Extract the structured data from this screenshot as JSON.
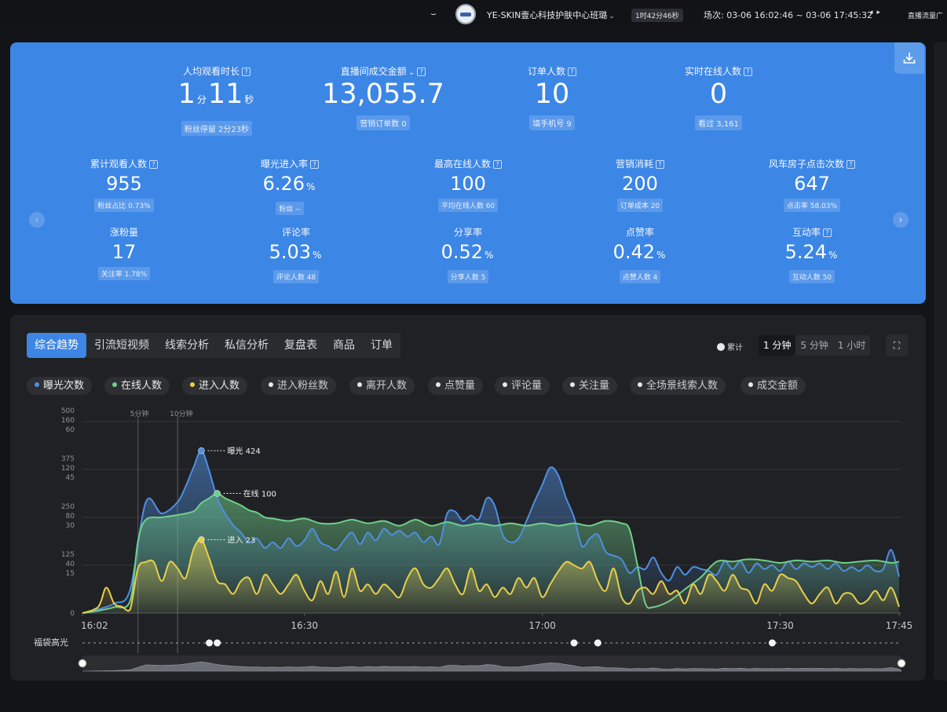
{
  "topbar": {
    "eye_icon": "eye-closed-icon",
    "shop_name": "YE-SKIN壹心科技护肤中心班璐",
    "duration": "1时42分46秒",
    "session": "场次: 03-06 16:02:46 ~ 03-06 17:45:32",
    "right_label": "直播流量广"
  },
  "top_metrics": [
    {
      "label": "人均观看时长",
      "value_main": "1",
      "unit1": "分",
      "value_second": "11",
      "unit2": "秒",
      "sub": "粉丝停留 2分23秒"
    },
    {
      "label": "直播间成交金额",
      "value": "13,055.7",
      "sub": "营销订单数 0",
      "has_caret": true
    },
    {
      "label": "订单人数",
      "value": "10",
      "sub": "填手机号 9"
    },
    {
      "label": "实时在线人数",
      "value": "0",
      "sub": "看过 3,161"
    }
  ],
  "grid_metrics": [
    {
      "label": "累计观看人数",
      "value": "955",
      "unit": "",
      "sub": "粉丝占比 0.73%",
      "help": true
    },
    {
      "label": "曝光进入率",
      "value": "6.26",
      "unit": "%",
      "sub": "粉丝 --",
      "help": true
    },
    {
      "label": "最高在线人数",
      "value": "100",
      "unit": "",
      "sub": "平均在线人数 60",
      "help": true
    },
    {
      "label": "营销消耗",
      "value": "200",
      "unit": "",
      "sub": "订单成本 20",
      "help": true
    },
    {
      "label": "风车房子点击次数",
      "value": "647",
      "unit": "",
      "sub": "点击率 58.03%",
      "help": true
    },
    {
      "label": "涨粉量",
      "value": "17",
      "unit": "",
      "sub": "关注率 1.78%",
      "help": false
    },
    {
      "label": "评论率",
      "value": "5.03",
      "unit": "%",
      "sub": "评论人数 48",
      "help": false
    },
    {
      "label": "分享率",
      "value": "0.52",
      "unit": "%",
      "sub": "分享人数 5",
      "help": false
    },
    {
      "label": "点赞率",
      "value": "0.42",
      "unit": "%",
      "sub": "点赞人数 4",
      "help": false
    },
    {
      "label": "互动率",
      "value": "5.24",
      "unit": "%",
      "sub": "互动人数 50",
      "help": true
    }
  ],
  "tabs": [
    "综合趋势",
    "引流短视频",
    "线索分析",
    "私信分析",
    "复盘表",
    "商品",
    "订单"
  ],
  "cumulative_label": "累计",
  "time_options": [
    "1 分钟",
    "5 分钟",
    "1 小时"
  ],
  "chips": [
    {
      "label": "曝光次数",
      "color": "#4f8fe0",
      "active": true
    },
    {
      "label": "在线人数",
      "color": "#6fcf8a",
      "active": true
    },
    {
      "label": "进入人数",
      "color": "#e7cf4a",
      "active": true
    },
    {
      "label": "进入粉丝数",
      "color": "#e9e9e9",
      "active": false
    },
    {
      "label": "离开人数",
      "color": "#e9e9e9",
      "active": false
    },
    {
      "label": "点赞量",
      "color": "#e9e9e9",
      "active": false
    },
    {
      "label": "评论量",
      "color": "#e9e9e9",
      "active": false
    },
    {
      "label": "关注量",
      "color": "#e9e9e9",
      "active": false
    },
    {
      "label": "全场景线索人数",
      "color": "#e9e9e9",
      "active": false
    },
    {
      "label": "成交金额",
      "color": "#e9e9e9",
      "active": false
    }
  ],
  "chart_data": {
    "type": "line",
    "x_labels": [
      "16:02",
      "16:30",
      "17:00",
      "17:30",
      "17:45"
    ],
    "x_ticks_min": [
      0,
      28,
      58,
      88,
      103
    ],
    "y_axis_labels": [
      [
        "500",
        "160",
        "60"
      ],
      [
        "375",
        "120",
        "45"
      ],
      [
        "250",
        "80",
        "30"
      ],
      [
        "125",
        "40",
        "15"
      ],
      [
        "0"
      ]
    ],
    "markers": [
      {
        "label": "5分钟",
        "x_min": 7
      },
      {
        "label": "10分钟",
        "x_min": 12
      }
    ],
    "annotations": [
      {
        "text": "曝光 424",
        "x_min": 15,
        "value": 424,
        "series": "曝光次数"
      },
      {
        "text": "在线 100",
        "x_min": 17,
        "value": 100,
        "series": "在线人数"
      },
      {
        "text": "进入 23",
        "x_min": 15,
        "value": 23,
        "series": "进入人数"
      }
    ],
    "series": [
      {
        "name": "曝光次数",
        "color": "#4f8fe0",
        "ymax": 500,
        "points": [
          [
            0,
            0
          ],
          [
            2,
            10
          ],
          [
            4,
            25
          ],
          [
            6,
            60
          ],
          [
            8,
            290
          ],
          [
            10,
            260
          ],
          [
            12,
            290
          ],
          [
            13,
            330
          ],
          [
            14,
            380
          ],
          [
            15,
            424
          ],
          [
            16,
            370
          ],
          [
            17,
            300
          ],
          [
            18,
            260
          ],
          [
            19,
            230
          ],
          [
            20,
            210
          ],
          [
            21,
            185
          ],
          [
            22,
            195
          ],
          [
            23,
            170
          ],
          [
            24,
            185
          ],
          [
            25,
            170
          ],
          [
            26,
            195
          ],
          [
            27,
            175
          ],
          [
            28,
            190
          ],
          [
            29,
            220
          ],
          [
            30,
            185
          ],
          [
            31,
            175
          ],
          [
            32,
            165
          ],
          [
            33,
            190
          ],
          [
            34,
            210
          ],
          [
            35,
            180
          ],
          [
            36,
            210
          ],
          [
            37,
            190
          ],
          [
            38,
            220
          ],
          [
            39,
            205
          ],
          [
            40,
            215
          ],
          [
            41,
            200
          ],
          [
            42,
            210
          ],
          [
            43,
            185
          ],
          [
            44,
            200
          ],
          [
            45,
            180
          ],
          [
            46,
            260
          ],
          [
            47,
            265
          ],
          [
            48,
            240
          ],
          [
            49,
            255
          ],
          [
            50,
            245
          ],
          [
            51,
            300
          ],
          [
            52,
            280
          ],
          [
            53,
            205
          ],
          [
            54,
            185
          ],
          [
            55,
            195
          ],
          [
            56,
            240
          ],
          [
            57,
            290
          ],
          [
            58,
            335
          ],
          [
            59,
            380
          ],
          [
            60,
            360
          ],
          [
            61,
            300
          ],
          [
            62,
            250
          ],
          [
            63,
            175
          ],
          [
            64,
            195
          ],
          [
            65,
            205
          ],
          [
            66,
            160
          ],
          [
            67,
            150
          ],
          [
            68,
            140
          ],
          [
            69,
            105
          ],
          [
            70,
            120
          ],
          [
            71,
            115
          ],
          [
            72,
            145
          ],
          [
            73,
            105
          ],
          [
            74,
            85
          ],
          [
            75,
            120
          ],
          [
            76,
            100
          ],
          [
            77,
            120
          ],
          [
            78,
            115
          ],
          [
            79,
            110
          ],
          [
            80,
            100
          ],
          [
            81,
            135
          ],
          [
            82,
            115
          ],
          [
            83,
            135
          ],
          [
            84,
            105
          ],
          [
            85,
            130
          ],
          [
            86,
            115
          ],
          [
            87,
            125
          ],
          [
            88,
            110
          ],
          [
            89,
            135
          ],
          [
            90,
            115
          ],
          [
            91,
            130
          ],
          [
            92,
            120
          ],
          [
            93,
            130
          ],
          [
            94,
            115
          ],
          [
            95,
            130
          ],
          [
            96,
            110
          ],
          [
            97,
            120
          ],
          [
            98,
            110
          ],
          [
            99,
            125
          ],
          [
            100,
            110
          ],
          [
            101,
            115
          ],
          [
            102,
            165
          ],
          [
            103,
            95
          ]
        ]
      },
      {
        "name": "在线人数",
        "color": "#6fcf8a",
        "ymax": 160,
        "points": [
          [
            0,
            0
          ],
          [
            2,
            2
          ],
          [
            4,
            5
          ],
          [
            6,
            10
          ],
          [
            7,
            60
          ],
          [
            8,
            78
          ],
          [
            10,
            80
          ],
          [
            12,
            82
          ],
          [
            14,
            85
          ],
          [
            15,
            92
          ],
          [
            16,
            96
          ],
          [
            17,
            100
          ],
          [
            18,
            96
          ],
          [
            19,
            93
          ],
          [
            20,
            90
          ],
          [
            21,
            86
          ],
          [
            22,
            84
          ],
          [
            23,
            80
          ],
          [
            24,
            79
          ],
          [
            26,
            77
          ],
          [
            28,
            79
          ],
          [
            30,
            75
          ],
          [
            32,
            75
          ],
          [
            34,
            78
          ],
          [
            36,
            75
          ],
          [
            38,
            77
          ],
          [
            40,
            73
          ],
          [
            42,
            78
          ],
          [
            44,
            73
          ],
          [
            46,
            76
          ],
          [
            48,
            73
          ],
          [
            50,
            75
          ],
          [
            52,
            73
          ],
          [
            54,
            75
          ],
          [
            56,
            73
          ],
          [
            58,
            75
          ],
          [
            60,
            73
          ],
          [
            62,
            75
          ],
          [
            64,
            73
          ],
          [
            66,
            77
          ],
          [
            68,
            75
          ],
          [
            69,
            70
          ],
          [
            70,
            40
          ],
          [
            71,
            8
          ],
          [
            72,
            5
          ],
          [
            74,
            10
          ],
          [
            76,
            20
          ],
          [
            78,
            30
          ],
          [
            80,
            43
          ],
          [
            82,
            43
          ],
          [
            84,
            45
          ],
          [
            86,
            44
          ],
          [
            88,
            42
          ],
          [
            90,
            44
          ],
          [
            92,
            43
          ],
          [
            94,
            44
          ],
          [
            96,
            42
          ],
          [
            98,
            43
          ],
          [
            100,
            44
          ],
          [
            102,
            42
          ],
          [
            103,
            43
          ]
        ]
      },
      {
        "name": "进入人数",
        "color": "#e7cf4a",
        "ymax": 60,
        "points": [
          [
            0,
            0
          ],
          [
            2,
            2
          ],
          [
            3,
            8
          ],
          [
            4,
            3
          ],
          [
            5,
            2
          ],
          [
            6,
            1
          ],
          [
            7,
            14
          ],
          [
            8,
            16
          ],
          [
            9,
            16
          ],
          [
            10,
            10
          ],
          [
            11,
            16
          ],
          [
            12,
            14
          ],
          [
            13,
            11
          ],
          [
            14,
            20
          ],
          [
            15,
            23
          ],
          [
            16,
            17
          ],
          [
            17,
            10
          ],
          [
            18,
            9
          ],
          [
            19,
            6
          ],
          [
            20,
            10
          ],
          [
            21,
            11
          ],
          [
            22,
            6
          ],
          [
            23,
            12
          ],
          [
            24,
            9
          ],
          [
            25,
            6
          ],
          [
            26,
            9
          ],
          [
            27,
            12
          ],
          [
            28,
            7
          ],
          [
            29,
            4
          ],
          [
            30,
            10
          ],
          [
            31,
            6
          ],
          [
            32,
            13
          ],
          [
            33,
            5
          ],
          [
            34,
            14
          ],
          [
            35,
            7
          ],
          [
            36,
            9
          ],
          [
            37,
            6
          ],
          [
            38,
            9
          ],
          [
            39,
            7
          ],
          [
            40,
            5
          ],
          [
            41,
            11
          ],
          [
            42,
            14
          ],
          [
            43,
            9
          ],
          [
            44,
            8
          ],
          [
            45,
            11
          ],
          [
            46,
            14
          ],
          [
            47,
            9
          ],
          [
            48,
            6
          ],
          [
            49,
            14
          ],
          [
            50,
            7
          ],
          [
            51,
            9
          ],
          [
            52,
            5
          ],
          [
            53,
            8
          ],
          [
            54,
            6
          ],
          [
            55,
            11
          ],
          [
            56,
            8
          ],
          [
            57,
            11
          ],
          [
            58,
            5
          ],
          [
            59,
            9
          ],
          [
            60,
            13
          ],
          [
            61,
            16
          ],
          [
            62,
            15
          ],
          [
            63,
            14
          ],
          [
            64,
            16
          ],
          [
            65,
            10
          ],
          [
            66,
            7
          ],
          [
            67,
            14
          ],
          [
            68,
            5
          ],
          [
            69,
            3
          ],
          [
            70,
            7
          ],
          [
            71,
            8
          ],
          [
            72,
            6
          ],
          [
            73,
            10
          ],
          [
            74,
            6
          ],
          [
            75,
            7
          ],
          [
            76,
            3
          ],
          [
            77,
            9
          ],
          [
            78,
            6
          ],
          [
            79,
            12
          ],
          [
            80,
            10
          ],
          [
            81,
            7
          ],
          [
            82,
            12
          ],
          [
            83,
            8
          ],
          [
            84,
            7
          ],
          [
            85,
            3
          ],
          [
            86,
            9
          ],
          [
            87,
            7
          ],
          [
            88,
            12
          ],
          [
            89,
            11
          ],
          [
            90,
            10
          ],
          [
            91,
            6
          ],
          [
            92,
            3
          ],
          [
            93,
            6
          ],
          [
            94,
            8
          ],
          [
            95,
            3
          ],
          [
            96,
            6
          ],
          [
            97,
            6
          ],
          [
            98,
            3
          ],
          [
            99,
            4
          ],
          [
            100,
            7
          ],
          [
            101,
            4
          ],
          [
            102,
            8
          ],
          [
            103,
            2
          ]
        ]
      }
    ],
    "event_row_label": "福袋高光",
    "event_x_min": [
      16,
      17,
      62,
      65,
      87
    ]
  }
}
